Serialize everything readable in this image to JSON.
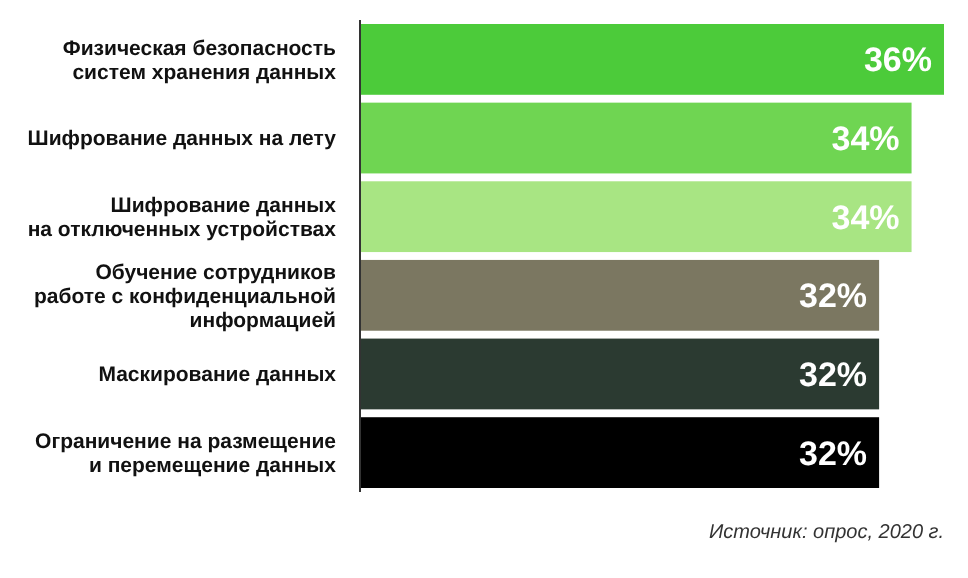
{
  "chart_data": {
    "type": "bar",
    "orientation": "horizontal",
    "categories": [
      "Физическая безопасность\nсистем хранения данных",
      "Шифрование данных на лету",
      "Шифрование данных\nна отключенных устройствах",
      "Обучение сотрудников\nработе с конфиденциальной\nинформацией",
      "Маскирование данных",
      "Ограничение на размещение\nи перемещение данных"
    ],
    "values": [
      36,
      34,
      34,
      32,
      32,
      32
    ],
    "colors": [
      "#4ccb3a",
      "#6fd552",
      "#a8e583",
      "#7b7761",
      "#2b3a31",
      "#000000"
    ],
    "value_labels": [
      "36%",
      "34%",
      "34%",
      "32%",
      "32%",
      "32%"
    ],
    "annotations": [
      "Источник: опрос, 2020 г."
    ]
  }
}
